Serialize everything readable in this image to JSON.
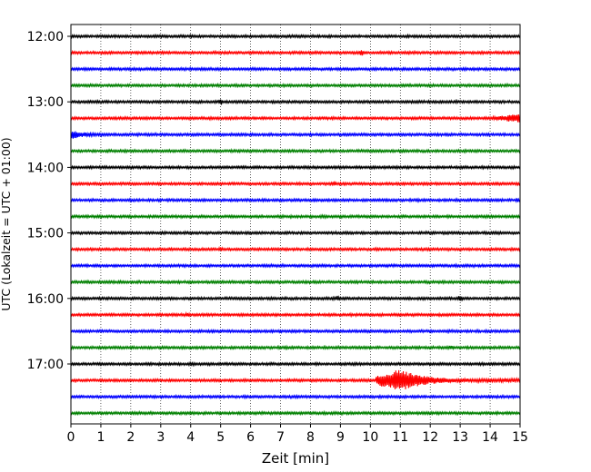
{
  "chart_data": {
    "type": "line",
    "title": "",
    "xlabel": "Zeit  [min]",
    "ylabel": "UTC (Lokalzeit = UTC + 01:00)",
    "xlim": [
      0,
      15
    ],
    "x_ticks": [
      0,
      1,
      2,
      3,
      4,
      5,
      6,
      7,
      8,
      9,
      10,
      11,
      12,
      13,
      14,
      15
    ],
    "y_tick_labels": [
      "12:00",
      "13:00",
      "14:00",
      "15:00",
      "16:00",
      "17:00"
    ],
    "y_tick_rows": [
      0,
      4,
      8,
      12,
      16,
      20
    ],
    "row_count": 24,
    "row_interval_minutes": 15,
    "start_time": "12:00",
    "grid": "vertical dotted",
    "colors": [
      "#000000",
      "#ff0000",
      "#0000ff",
      "#008000"
    ],
    "events": [
      {
        "row": 5,
        "start": 13.9,
        "end": 15.0,
        "amplitude": 0.45,
        "type": "rising"
      },
      {
        "row": 6,
        "start": 0.0,
        "end": 1.3,
        "amplitude": 0.42,
        "type": "decaying"
      },
      {
        "row": 21,
        "start": 10.2,
        "end": 15.0,
        "peak": 11.0,
        "amplitude": 1.2,
        "type": "quake"
      }
    ],
    "spikes": [
      {
        "row": 1,
        "x": 9.7,
        "amp": 0.3
      },
      {
        "row": 4,
        "x": 5.0,
        "amp": 0.3
      },
      {
        "row": 9,
        "x": 8.8,
        "amp": 0.2
      },
      {
        "row": 10,
        "x": 14.9,
        "amp": 0.2
      },
      {
        "row": 13,
        "x": 5.0,
        "amp": 0.2
      },
      {
        "row": 16,
        "x": 13.0,
        "amp": 0.35
      },
      {
        "row": 16,
        "x": 8.9,
        "amp": 0.2
      },
      {
        "row": 17,
        "x": 3.9,
        "amp": 0.2
      },
      {
        "row": 19,
        "x": 12.7,
        "amp": 0.2
      }
    ]
  }
}
